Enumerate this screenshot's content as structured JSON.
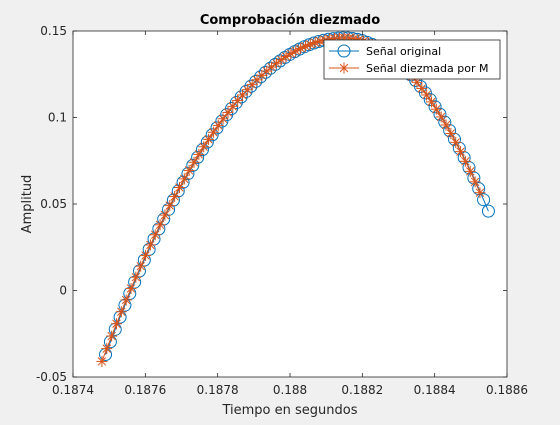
{
  "chart_data": {
    "type": "scatter",
    "title": "Comprobación diezmado",
    "xlabel": "Tiempo en segundos",
    "ylabel": "Amplitud",
    "xlim": [
      0.1874,
      0.1886
    ],
    "ylim": [
      -0.05,
      0.15
    ],
    "xticks": [
      0.1874,
      0.1876,
      0.1878,
      0.188,
      0.1882,
      0.1884,
      0.1886
    ],
    "yticks": [
      -0.05,
      0,
      0.05,
      0.1,
      0.15
    ],
    "xtick_labels": [
      "0.1874",
      "0.1876",
      "0.1878",
      "0.188",
      "0.1882",
      "0.1884",
      "0.1886"
    ],
    "ytick_labels": [
      "-0.05",
      "0",
      "0.05",
      "0.1",
      "0.15"
    ],
    "grid": false,
    "legend_position": "top-right",
    "series": [
      {
        "name": "Señal original",
        "marker": "circle",
        "color": "#0072BD",
        "x_start": 0.18749,
        "x_step": 1.34e-05,
        "count": 80,
        "curve": {
          "peak_x": 0.18815,
          "peak_y": 0.146,
          "left_anchor": [
            0.18749,
            -0.037
          ],
          "right_anchor": [
            0.18853,
            0.055
          ]
        }
      },
      {
        "name": "Señal diezmada por M",
        "marker": "asterisk",
        "color": "#D95319",
        "x_start": 0.18748,
        "x_step": 1.34e-05,
        "count": 79,
        "curve": {
          "peak_x": 0.18815,
          "peak_y": 0.146,
          "left_anchor": [
            0.18748,
            -0.041
          ],
          "right_anchor": [
            0.18852,
            0.059
          ]
        }
      }
    ]
  }
}
